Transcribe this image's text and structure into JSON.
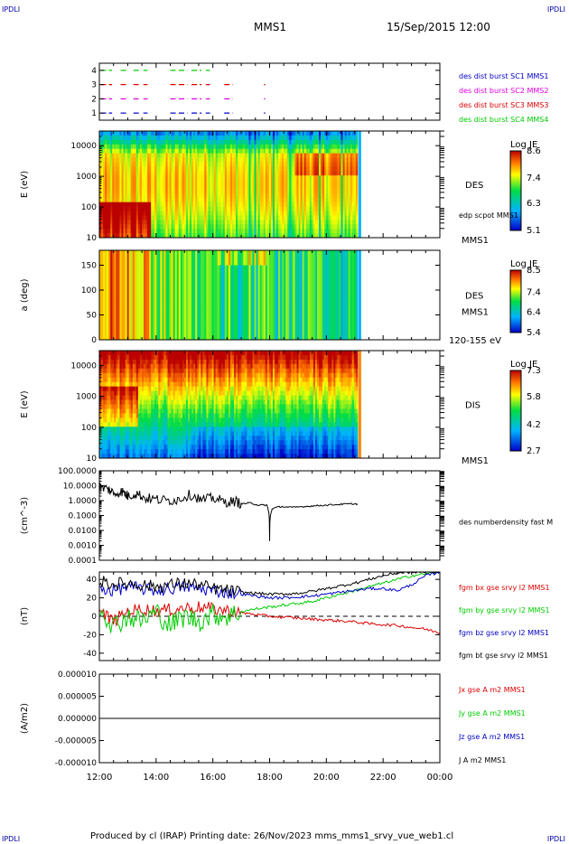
{
  "corner_left": "IPDLI",
  "corner_right": "IPDLI",
  "title": "MMS1",
  "datetime": "15/Sep/2015 12:00",
  "footer": "Produced by cl (IRAP)   Printing date: 26/Nov/2023   mms_mms1_srvy_vue_web1.cl",
  "time_axis": {
    "ticks": [
      "12:00",
      "14:00",
      "16:00",
      "18:00",
      "20:00",
      "22:00",
      "00:00"
    ],
    "hours": [
      0,
      2,
      4,
      6,
      8,
      10,
      12
    ]
  },
  "colors": {
    "blue": "#0000c8",
    "magenta": "#e000e0",
    "red": "#dd0000",
    "green": "#00cc00",
    "black": "#000000"
  },
  "chart_data": [
    {
      "type": "scatter",
      "panel": "burst",
      "ylabel": "",
      "y_ticks": [
        "4",
        "3",
        "2",
        "1"
      ],
      "ylim": [
        0.5,
        4.5
      ],
      "legend": [
        "des dist burst SC1 MMS1",
        "des dist burst SC2 MMS2",
        "des dist burst SC3 MMS3",
        "des dist burst SC4 MMS4"
      ],
      "series": [
        {
          "level": 1,
          "color": "#0000c8",
          "segments": [
            [
              0.05,
              0.45
            ],
            [
              0.75,
              0.95
            ],
            [
              1.2,
              1.4
            ],
            [
              1.55,
              1.7
            ],
            [
              2.5,
              2.7
            ],
            [
              2.8,
              3.1
            ],
            [
              3.25,
              3.6
            ],
            [
              3.75,
              3.9
            ],
            [
              4.4,
              4.7
            ],
            [
              5.8,
              5.85
            ]
          ]
        },
        {
          "level": 2,
          "color": "#e000e0",
          "segments": [
            [
              0.05,
              0.45
            ],
            [
              0.75,
              0.95
            ],
            [
              1.2,
              1.4
            ],
            [
              1.55,
              1.7
            ],
            [
              2.5,
              2.7
            ],
            [
              2.8,
              3.1
            ],
            [
              3.25,
              3.6
            ],
            [
              3.75,
              3.9
            ],
            [
              4.4,
              4.7
            ],
            [
              5.8,
              5.85
            ]
          ]
        },
        {
          "level": 3,
          "color": "#dd0000",
          "segments": [
            [
              0.05,
              0.45
            ],
            [
              0.75,
              0.95
            ],
            [
              1.2,
              1.4
            ],
            [
              1.55,
              1.7
            ],
            [
              2.5,
              2.7
            ],
            [
              2.8,
              3.1
            ],
            [
              3.25,
              3.6
            ],
            [
              3.75,
              3.9
            ],
            [
              4.4,
              4.7
            ],
            [
              5.8,
              5.85
            ]
          ]
        },
        {
          "level": 4,
          "color": "#00cc00",
          "segments": [
            [
              0.05,
              0.45
            ],
            [
              0.75,
              0.95
            ],
            [
              1.2,
              1.4
            ],
            [
              1.55,
              1.7
            ],
            [
              2.5,
              2.7
            ],
            [
              2.8,
              3.1
            ],
            [
              3.25,
              3.6
            ],
            [
              3.75,
              3.9
            ]
          ]
        }
      ]
    },
    {
      "type": "heatmap",
      "panel": "des_energy",
      "ylabel": "E (eV)",
      "yscale": "log",
      "ylim": [
        10,
        30000
      ],
      "y_ticks": [
        "10000",
        "1000",
        "100",
        "10"
      ],
      "y_tick_values": [
        10000,
        1000,
        100,
        10
      ],
      "label": "DES",
      "sub_label": "edp scpot MMS1",
      "sc_label": "MMS1",
      "colorbar": {
        "title": "Log JE",
        "range": [
          5.1,
          8.6
        ],
        "ticks": [
          "8.6",
          "7.4",
          "6.3",
          "5.1"
        ],
        "tick_values": [
          8.6,
          7.4,
          6.3,
          5.1
        ]
      },
      "data_end_hour": 9.1
    },
    {
      "type": "heatmap",
      "panel": "des_pitch",
      "ylabel": "a (deg)",
      "ylim": [
        0,
        180
      ],
      "y_ticks": [
        "150",
        "100",
        "50",
        "0"
      ],
      "y_tick_values": [
        150,
        100,
        50,
        0
      ],
      "label": "DES",
      "sc_label": "MMS1",
      "energy_label": "120-155 eV",
      "colorbar": {
        "title": "Log JE",
        "range": [
          5.4,
          8.5
        ],
        "ticks": [
          "8.5",
          "7.4",
          "6.4",
          "5.4"
        ],
        "tick_values": [
          8.5,
          7.4,
          6.4,
          5.4
        ]
      },
      "data_end_hour": 9.1
    },
    {
      "type": "heatmap",
      "panel": "dis_energy",
      "ylabel": "E (eV)",
      "yscale": "log",
      "ylim": [
        10,
        30000
      ],
      "y_ticks": [
        "10000",
        "1000",
        "100",
        "10"
      ],
      "y_tick_values": [
        10000,
        1000,
        100,
        10
      ],
      "label": "DIS",
      "sc_label": "MMS1",
      "colorbar": {
        "title": "Log JE",
        "range": [
          2.7,
          7.3
        ],
        "ticks": [
          "7.3",
          "5.8",
          "4.2",
          "2.7"
        ],
        "tick_values": [
          7.3,
          5.8,
          4.2,
          2.7
        ]
      },
      "data_end_hour": 9.1
    },
    {
      "type": "line",
      "panel": "density",
      "ylabel": "(cm^-3)",
      "yscale": "log",
      "ylim": [
        0.0001,
        100
      ],
      "y_ticks": [
        "100.0000",
        "10.0000",
        "1.0000",
        "0.1000",
        "0.0100",
        "0.0010",
        "0.0001"
      ],
      "y_tick_values": [
        100,
        10,
        1,
        0.1,
        0.01,
        0.001,
        0.0001
      ],
      "legend": [
        "des numberdensity fast M"
      ],
      "series": [
        {
          "name": "des numberdensity fast M",
          "color": "#000000",
          "x": [
            0.0,
            0.3,
            0.5,
            0.8,
            1.0,
            1.3,
            1.6,
            2.0,
            2.4,
            2.8,
            3.2,
            3.6,
            4.0,
            4.4,
            4.8,
            5.0,
            5.3,
            5.6,
            5.9,
            6.0,
            6.1,
            6.4,
            6.8,
            7.2,
            7.6,
            8.0,
            8.4,
            8.8,
            9.1
          ],
          "y": [
            8,
            6,
            3,
            4,
            2,
            3,
            1.5,
            1.2,
            1.0,
            1.2,
            2.5,
            1.0,
            1.5,
            0.8,
            0.9,
            0.6,
            0.7,
            0.5,
            0.5,
            0.002,
            0.3,
            0.4,
            0.35,
            0.4,
            0.45,
            0.5,
            0.55,
            0.6,
            0.6
          ]
        }
      ]
    },
    {
      "type": "line",
      "panel": "fgm",
      "ylabel": "(nT)",
      "ylim": [
        -48,
        48
      ],
      "y_ticks": [
        "40",
        "20",
        "0",
        "-20",
        "-40"
      ],
      "y_tick_values": [
        40,
        20,
        0,
        -20,
        -40
      ],
      "legend": [
        "fgm bx gse srvy l2 MMS1",
        "fgm by gse srvy l2 MMS1",
        "fgm bz gse srvy l2 MMS1",
        "fgm bt gse srvy l2 MMS1"
      ],
      "series": [
        {
          "name": "fgm bx gse srvy l2 MMS1",
          "color": "#dd0000",
          "x": [
            0,
            0.5,
            1,
            1.5,
            2,
            2.5,
            3,
            3.5,
            4,
            4.5,
            5,
            5.5,
            6,
            6.5,
            7,
            7.5,
            8,
            8.5,
            9,
            9.5,
            10,
            10.5,
            11,
            11.5,
            12
          ],
          "y": [
            5,
            -5,
            5,
            8,
            6,
            7,
            9,
            10,
            8,
            6,
            4,
            2,
            0,
            -1,
            -2,
            -3,
            -4,
            -5,
            -6,
            -8,
            -9,
            -10,
            -12,
            -14,
            -18
          ]
        },
        {
          "name": "fgm by gse srvy l2 MMS1",
          "color": "#00cc00",
          "x": [
            0,
            0.5,
            1,
            1.5,
            2,
            2.5,
            3,
            3.5,
            4,
            4.5,
            5,
            5.5,
            6,
            6.5,
            7,
            7.5,
            8,
            8.5,
            9,
            9.5,
            10,
            10.5,
            11,
            11.5,
            12
          ],
          "y": [
            10,
            -10,
            0,
            -5,
            5,
            -10,
            0,
            -5,
            2,
            0,
            5,
            8,
            10,
            12,
            14,
            16,
            20,
            24,
            28,
            32,
            36,
            40,
            44,
            46,
            48
          ]
        },
        {
          "name": "fgm bz gse srvy l2 MMS1",
          "color": "#0000c8",
          "x": [
            0,
            0.5,
            1,
            1.5,
            2,
            2.5,
            3,
            3.5,
            4,
            4.5,
            5,
            5.5,
            6,
            6.5,
            7,
            7.5,
            8,
            8.5,
            9,
            9.5,
            10,
            10.5,
            11,
            11.5,
            12
          ],
          "y": [
            30,
            28,
            32,
            30,
            28,
            30,
            32,
            30,
            28,
            26,
            24,
            22,
            20,
            20,
            21,
            22,
            24,
            26,
            28,
            30,
            30,
            28,
            34,
            44,
            48
          ]
        },
        {
          "name": "fgm bt gse srvy l2 MMS1",
          "color": "#000000",
          "x": [
            0,
            0.5,
            1,
            1.5,
            2,
            2.5,
            3,
            3.5,
            4,
            4.5,
            5,
            5.5,
            6,
            6.5,
            7,
            7.5,
            8,
            8.5,
            9,
            9.5,
            10,
            10.5,
            11,
            11.5,
            12
          ],
          "y": [
            38,
            35,
            36,
            34,
            32,
            34,
            36,
            34,
            30,
            28,
            26,
            25,
            24,
            24,
            25,
            27,
            30,
            33,
            36,
            40,
            44,
            47,
            48,
            48,
            48
          ]
        }
      ]
    },
    {
      "type": "line",
      "panel": "current",
      "ylabel": "(A/m2)",
      "ylim": [
        -1e-05,
        1e-05
      ],
      "y_ticks": [
        "0.000010",
        "0.000005",
        "0.000000",
        "-0.000005",
        "-0.000010"
      ],
      "y_tick_values": [
        1e-05,
        5e-06,
        0,
        -5e-06,
        -1e-05
      ],
      "legend": [
        "Jx gse A m2 MMS1",
        "Jy gse A m2 MMS1",
        "Jz gse A m2 MMS1",
        "J A m2 MMS1"
      ],
      "series": [
        {
          "name": "J A m2 MMS1",
          "color": "#000000",
          "x": [
            0,
            12
          ],
          "y": [
            0,
            0
          ]
        }
      ]
    }
  ]
}
